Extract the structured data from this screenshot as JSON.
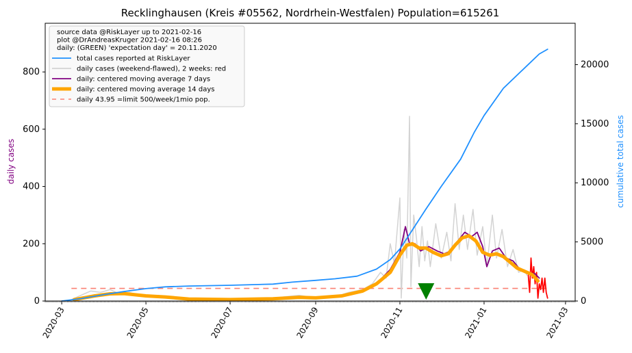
{
  "chart_data": {
    "type": "line",
    "title": "Recklinghausen (Kreis #05562, Nordrhein-Westfalen) Population=615261",
    "ylabel_left": "daily cases",
    "ylabel_right": "cumulative total cases",
    "ylim_left": [
      0,
      970
    ],
    "ylim_right": [
      0,
      23500
    ],
    "xlim": [
      "2020-02-18",
      "2021-03-08"
    ],
    "left_ticks": [
      "0",
      "200",
      "400",
      "600",
      "800"
    ],
    "right_ticks": [
      "0",
      "5000",
      "10000",
      "15000",
      "20000"
    ],
    "x_ticks": [
      "2020-03",
      "2020-05",
      "2020-07",
      "2020-09",
      "2020-11",
      "2021-01",
      "2021-03"
    ],
    "legend": {
      "position": "top-left",
      "header": [
        "source data @RiskLayer up to 2021-02-16",
        "plot @DrAndreasKruger 2021-02-16 08:26",
        "daily: (GREEN) 'expectation day' = 20.11.2020"
      ],
      "entries": [
        {
          "label": "total cases reported at RiskLayer",
          "color": "#1e90ff",
          "style": "solid"
        },
        {
          "label": "daily cases (weekend-flawed), 2 weeks: red",
          "color": "#d3d3d3",
          "style": "solid"
        },
        {
          "label": "daily: centered moving average 7 days",
          "color": "#800080",
          "style": "solid"
        },
        {
          "label": "daily: centered moving average 14 days",
          "color": "#ffa500",
          "style": "thick"
        },
        {
          "label": "daily 43.95 =limit 500/week/1mio pop.",
          "color": "#fa8072",
          "style": "dashed"
        }
      ]
    },
    "limit_line": {
      "value": 43.95,
      "from": "2020-03-08",
      "to": "2021-02-16"
    },
    "expectation_day": "2020-11-20",
    "series": [
      {
        "name": "total cases reported at RiskLayer",
        "axis": "right",
        "color": "#1e90ff",
        "points": [
          [
            "2020-03-01",
            0
          ],
          [
            "2020-03-15",
            200
          ],
          [
            "2020-04-01",
            550
          ],
          [
            "2020-04-15",
            800
          ],
          [
            "2020-05-01",
            1050
          ],
          [
            "2020-05-15",
            1200
          ],
          [
            "2020-06-01",
            1270
          ],
          [
            "2020-07-01",
            1330
          ],
          [
            "2020-08-01",
            1430
          ],
          [
            "2020-08-15",
            1600
          ],
          [
            "2020-09-01",
            1750
          ],
          [
            "2020-09-15",
            1880
          ],
          [
            "2020-10-01",
            2100
          ],
          [
            "2020-10-15",
            2700
          ],
          [
            "2020-10-25",
            3500
          ],
          [
            "2020-11-01",
            4400
          ],
          [
            "2020-11-10",
            6000
          ],
          [
            "2020-11-20",
            7800
          ],
          [
            "2020-12-01",
            9700
          ],
          [
            "2020-12-15",
            12000
          ],
          [
            "2020-12-25",
            14300
          ],
          [
            "2021-01-01",
            15700
          ],
          [
            "2021-01-15",
            18000
          ],
          [
            "2021-02-01",
            19900
          ],
          [
            "2021-02-10",
            20900
          ],
          [
            "2021-02-16",
            21300
          ]
        ]
      },
      {
        "name": "daily cases (weekend-flawed), 2 weeks: red",
        "axis": "left",
        "color": "#d3d3d3",
        "points": [
          [
            "2020-03-08",
            5
          ],
          [
            "2020-03-15",
            20
          ],
          [
            "2020-03-22",
            35
          ],
          [
            "2020-03-29",
            30
          ],
          [
            "2020-04-05",
            40
          ],
          [
            "2020-04-12",
            25
          ],
          [
            "2020-04-19",
            30
          ],
          [
            "2020-04-26",
            20
          ],
          [
            "2020-05-03",
            15
          ],
          [
            "2020-05-10",
            20
          ],
          [
            "2020-05-17",
            10
          ],
          [
            "2020-06-01",
            8
          ],
          [
            "2020-07-01",
            6
          ],
          [
            "2020-08-01",
            10
          ],
          [
            "2020-08-10",
            15
          ],
          [
            "2020-08-20",
            20
          ],
          [
            "2020-09-01",
            10
          ],
          [
            "2020-09-15",
            15
          ],
          [
            "2020-09-25",
            30
          ],
          [
            "2020-10-05",
            40
          ],
          [
            "2020-10-12",
            60
          ],
          [
            "2020-10-18",
            100
          ],
          [
            "2020-10-22",
            80
          ],
          [
            "2020-10-25",
            200
          ],
          [
            "2020-10-28",
            130
          ],
          [
            "2020-11-01",
            360
          ],
          [
            "2020-11-02",
            10
          ],
          [
            "2020-11-04",
            250
          ],
          [
            "2020-11-06",
            150
          ],
          [
            "2020-11-08",
            645
          ],
          [
            "2020-11-09",
            50
          ],
          [
            "2020-11-11",
            300
          ],
          [
            "2020-11-13",
            220
          ],
          [
            "2020-11-15",
            120
          ],
          [
            "2020-11-17",
            260
          ],
          [
            "2020-11-19",
            140
          ],
          [
            "2020-11-21",
            210
          ],
          [
            "2020-11-23",
            120
          ],
          [
            "2020-11-27",
            270
          ],
          [
            "2020-12-01",
            150
          ],
          [
            "2020-12-05",
            240
          ],
          [
            "2020-12-08",
            140
          ],
          [
            "2020-12-11",
            340
          ],
          [
            "2020-12-14",
            180
          ],
          [
            "2020-12-17",
            300
          ],
          [
            "2020-12-20",
            180
          ],
          [
            "2020-12-24",
            320
          ],
          [
            "2020-12-27",
            160
          ],
          [
            "2020-12-31",
            260
          ],
          [
            "2021-01-03",
            120
          ],
          [
            "2021-01-07",
            300
          ],
          [
            "2021-01-10",
            150
          ],
          [
            "2021-01-14",
            250
          ],
          [
            "2021-01-18",
            120
          ],
          [
            "2021-01-22",
            180
          ],
          [
            "2021-01-26",
            100
          ],
          [
            "2021-01-30",
            110
          ],
          [
            "2021-02-01",
            90
          ]
        ]
      },
      {
        "name": "daily cases last 2 weeks",
        "axis": "left",
        "color": "#ff0000",
        "points": [
          [
            "2021-02-02",
            90
          ],
          [
            "2021-02-03",
            30
          ],
          [
            "2021-02-04",
            150
          ],
          [
            "2021-02-05",
            80
          ],
          [
            "2021-02-06",
            120
          ],
          [
            "2021-02-07",
            60
          ],
          [
            "2021-02-08",
            100
          ],
          [
            "2021-02-09",
            10
          ],
          [
            "2021-02-10",
            60
          ],
          [
            "2021-02-11",
            40
          ],
          [
            "2021-02-12",
            80
          ],
          [
            "2021-02-13",
            30
          ],
          [
            "2021-02-14",
            80
          ],
          [
            "2021-02-15",
            30
          ],
          [
            "2021-02-16",
            10
          ]
        ]
      },
      {
        "name": "daily: centered moving average 7 days",
        "axis": "left",
        "color": "#800080",
        "points": [
          [
            "2020-03-10",
            5
          ],
          [
            "2020-03-25",
            20
          ],
          [
            "2020-04-10",
            25
          ],
          [
            "2020-05-01",
            20
          ],
          [
            "2020-05-15",
            15
          ],
          [
            "2020-06-01",
            7
          ],
          [
            "2020-07-01",
            5
          ],
          [
            "2020-08-01",
            8
          ],
          [
            "2020-08-20",
            15
          ],
          [
            "2020-09-01",
            12
          ],
          [
            "2020-09-20",
            20
          ],
          [
            "2020-10-05",
            35
          ],
          [
            "2020-10-15",
            60
          ],
          [
            "2020-10-25",
            110
          ],
          [
            "2020-11-01",
            170
          ],
          [
            "2020-11-05",
            260
          ],
          [
            "2020-11-08",
            200
          ],
          [
            "2020-11-12",
            200
          ],
          [
            "2020-11-16",
            175
          ],
          [
            "2020-11-22",
            190
          ],
          [
            "2020-11-28",
            175
          ],
          [
            "2020-12-03",
            165
          ],
          [
            "2020-12-08",
            175
          ],
          [
            "2020-12-13",
            210
          ],
          [
            "2020-12-18",
            240
          ],
          [
            "2020-12-23",
            225
          ],
          [
            "2020-12-27",
            240
          ],
          [
            "2020-12-31",
            190
          ],
          [
            "2021-01-03",
            120
          ],
          [
            "2021-01-07",
            175
          ],
          [
            "2021-01-12",
            185
          ],
          [
            "2021-01-17",
            150
          ],
          [
            "2021-01-22",
            140
          ],
          [
            "2021-01-27",
            110
          ],
          [
            "2021-02-02",
            100
          ],
          [
            "2021-02-07",
            95
          ],
          [
            "2021-02-10",
            80
          ]
        ]
      },
      {
        "name": "daily: centered moving average 14 days",
        "axis": "left",
        "color": "#ffa500",
        "points": [
          [
            "2020-03-10",
            5
          ],
          [
            "2020-03-25",
            18
          ],
          [
            "2020-04-05",
            25
          ],
          [
            "2020-04-15",
            26
          ],
          [
            "2020-05-01",
            18
          ],
          [
            "2020-05-15",
            14
          ],
          [
            "2020-06-01",
            7
          ],
          [
            "2020-07-01",
            5
          ],
          [
            "2020-08-01",
            8
          ],
          [
            "2020-08-20",
            13
          ],
          [
            "2020-09-01",
            11
          ],
          [
            "2020-09-20",
            18
          ],
          [
            "2020-10-05",
            35
          ],
          [
            "2020-10-15",
            60
          ],
          [
            "2020-10-25",
            100
          ],
          [
            "2020-11-01",
            160
          ],
          [
            "2020-11-06",
            195
          ],
          [
            "2020-11-10",
            200
          ],
          [
            "2020-11-15",
            185
          ],
          [
            "2020-11-20",
            185
          ],
          [
            "2020-11-25",
            170
          ],
          [
            "2020-12-01",
            158
          ],
          [
            "2020-12-06",
            165
          ],
          [
            "2020-12-11",
            195
          ],
          [
            "2020-12-16",
            220
          ],
          [
            "2020-12-21",
            228
          ],
          [
            "2020-12-26",
            210
          ],
          [
            "2020-12-31",
            170
          ],
          [
            "2021-01-05",
            160
          ],
          [
            "2021-01-10",
            165
          ],
          [
            "2021-01-15",
            155
          ],
          [
            "2021-01-20",
            135
          ],
          [
            "2021-01-25",
            115
          ],
          [
            "2021-02-01",
            100
          ],
          [
            "2021-02-05",
            92
          ],
          [
            "2021-02-09",
            70
          ]
        ]
      }
    ]
  }
}
